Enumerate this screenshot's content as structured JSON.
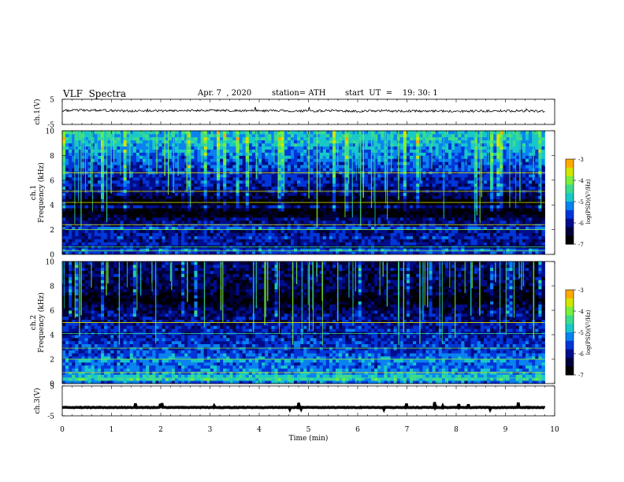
{
  "header": {
    "title": "VLF  Spectra",
    "date": "Apr. 7  , 2020",
    "station": "station= ATH",
    "start": "start  UT  =    19: 30: 1"
  },
  "colors": {
    "spectrum": [
      "#000000",
      "#00003c",
      "#000d8a",
      "#0036d8",
      "#0a82f0",
      "#19c8c8",
      "#3cdc8c",
      "#78f03c",
      "#d2e600",
      "#ffaa00",
      "#ff2a00",
      "#c80000",
      "#ffffff"
    ],
    "trace": "#000000",
    "separator": "#ffffff"
  },
  "chart_data": [
    {
      "type": "line",
      "title": "",
      "xlabel": "",
      "ylabel": "ch.1(V)",
      "xlim": [
        0,
        10
      ],
      "ylim": [
        -5,
        5
      ],
      "yticks": [
        "5",
        "-5"
      ],
      "x": [
        0,
        0.5,
        1,
        1.5,
        2,
        2.5,
        3,
        3.5,
        4,
        4.5,
        5,
        5.5,
        6,
        6.5,
        7,
        7.5,
        8,
        8.5,
        9,
        9.5,
        9.8
      ],
      "values": [
        0.5,
        0.7,
        0.5,
        0.3,
        0.4,
        0.5,
        0.6,
        0.5,
        0.4,
        0.4,
        0.3,
        0.5,
        0.2,
        0.4,
        0.3,
        0.4,
        0.2,
        0.3,
        0.4,
        0.3,
        0.3
      ]
    },
    {
      "type": "heatmap",
      "ylabel": "ch.1\nFrequency (kHz)",
      "xlim": [
        0,
        10
      ],
      "ylim": [
        0,
        10
      ],
      "yticks": [
        "10",
        "8",
        "6",
        "4",
        "2",
        "0"
      ],
      "colorbar": {
        "label": "log(PSD)(V²/Hz)",
        "ticks": [
          "-3",
          "-4",
          "-5",
          "-6",
          "-7"
        ],
        "range": [
          -7,
          -3
        ]
      },
      "freq_khz": [
        0.25,
        0.5,
        0.75,
        1,
        1.25,
        1.5,
        1.75,
        2,
        2.25,
        2.5,
        2.75,
        3,
        3.25,
        3.5,
        3.75,
        4,
        4.25,
        4.5,
        4.75,
        5,
        5.25,
        5.5,
        5.75,
        6,
        6.25,
        6.5,
        6.75,
        7,
        7.25,
        7.5,
        7.75,
        8,
        8.25,
        8.5,
        8.75,
        9,
        9.25,
        9.5,
        9.75,
        10
      ],
      "log_psd": [
        -5.8,
        -5.5,
        -6.2,
        -6.0,
        -6.1,
        -5.9,
        -6.0,
        -6.1,
        -5.6,
        -6.0,
        -6.2,
        -6.3,
        -6.7,
        -6.9,
        -6.8,
        -6.2,
        -6.9,
        -6.85,
        -6.5,
        -6.3,
        -6.2,
        -6.1,
        -6.0,
        -5.9,
        -6.0,
        -5.9,
        -5.8,
        -5.8,
        -5.7,
        -5.7,
        -5.6,
        -5.5,
        -5.4,
        -5.35,
        -5.3,
        -5.2,
        -5.1,
        -5.0,
        -5.0,
        -5.0
      ]
    },
    {
      "type": "heatmap",
      "ylabel": "ch.2\nFrequency (kHz)",
      "xlim": [
        0,
        10
      ],
      "ylim": [
        0,
        10
      ],
      "yticks": [
        "10",
        "8",
        "6",
        "4",
        "2",
        "0"
      ],
      "colorbar": {
        "label": "log(PSD)(V²/Hz)",
        "ticks": [
          "-3",
          "-4",
          "-5",
          "-6",
          "-7"
        ],
        "range": [
          -7,
          -3
        ]
      },
      "freq_khz": [
        0.25,
        0.5,
        0.75,
        1,
        1.25,
        1.5,
        1.75,
        2,
        2.25,
        2.5,
        2.75,
        3,
        3.25,
        3.5,
        3.75,
        4,
        4.25,
        4.5,
        4.75,
        5,
        5.25,
        5.5,
        5.75,
        6,
        6.25,
        6.5,
        6.75,
        7,
        7.25,
        7.5,
        7.75,
        8,
        8.25,
        8.5,
        8.75,
        9,
        9.25,
        9.5,
        9.75,
        10
      ],
      "log_psd": [
        -5.5,
        -4.8,
        -5.0,
        -5.3,
        -5.4,
        -5.5,
        -5.6,
        -5.3,
        -5.5,
        -5.6,
        -5.7,
        -5.8,
        -5.7,
        -5.8,
        -5.9,
        -5.9,
        -6.0,
        -5.9,
        -5.95,
        -6.0,
        -6.1,
        -6.15,
        -6.2,
        -6.3,
        -6.35,
        -6.5,
        -6.7,
        -6.9,
        -6.8,
        -6.6,
        -6.5,
        -6.4,
        -6.4,
        -6.35,
        -6.3,
        -6.3,
        -6.35,
        -6.3,
        -6.3,
        -6.3
      ]
    },
    {
      "type": "line",
      "ylabel": "ch.3(V)",
      "xlabel": "Time  (min)",
      "xlim": [
        0,
        10
      ],
      "ylim": [
        -5,
        5
      ],
      "yticks": [
        "5",
        "-5"
      ],
      "xticks": [
        "0",
        "1",
        "2",
        "3",
        "4",
        "5",
        "6",
        "7",
        "8",
        "9",
        "10"
      ],
      "x": [
        0,
        9.8
      ],
      "values": [
        -2.2,
        -2.2
      ]
    }
  ]
}
